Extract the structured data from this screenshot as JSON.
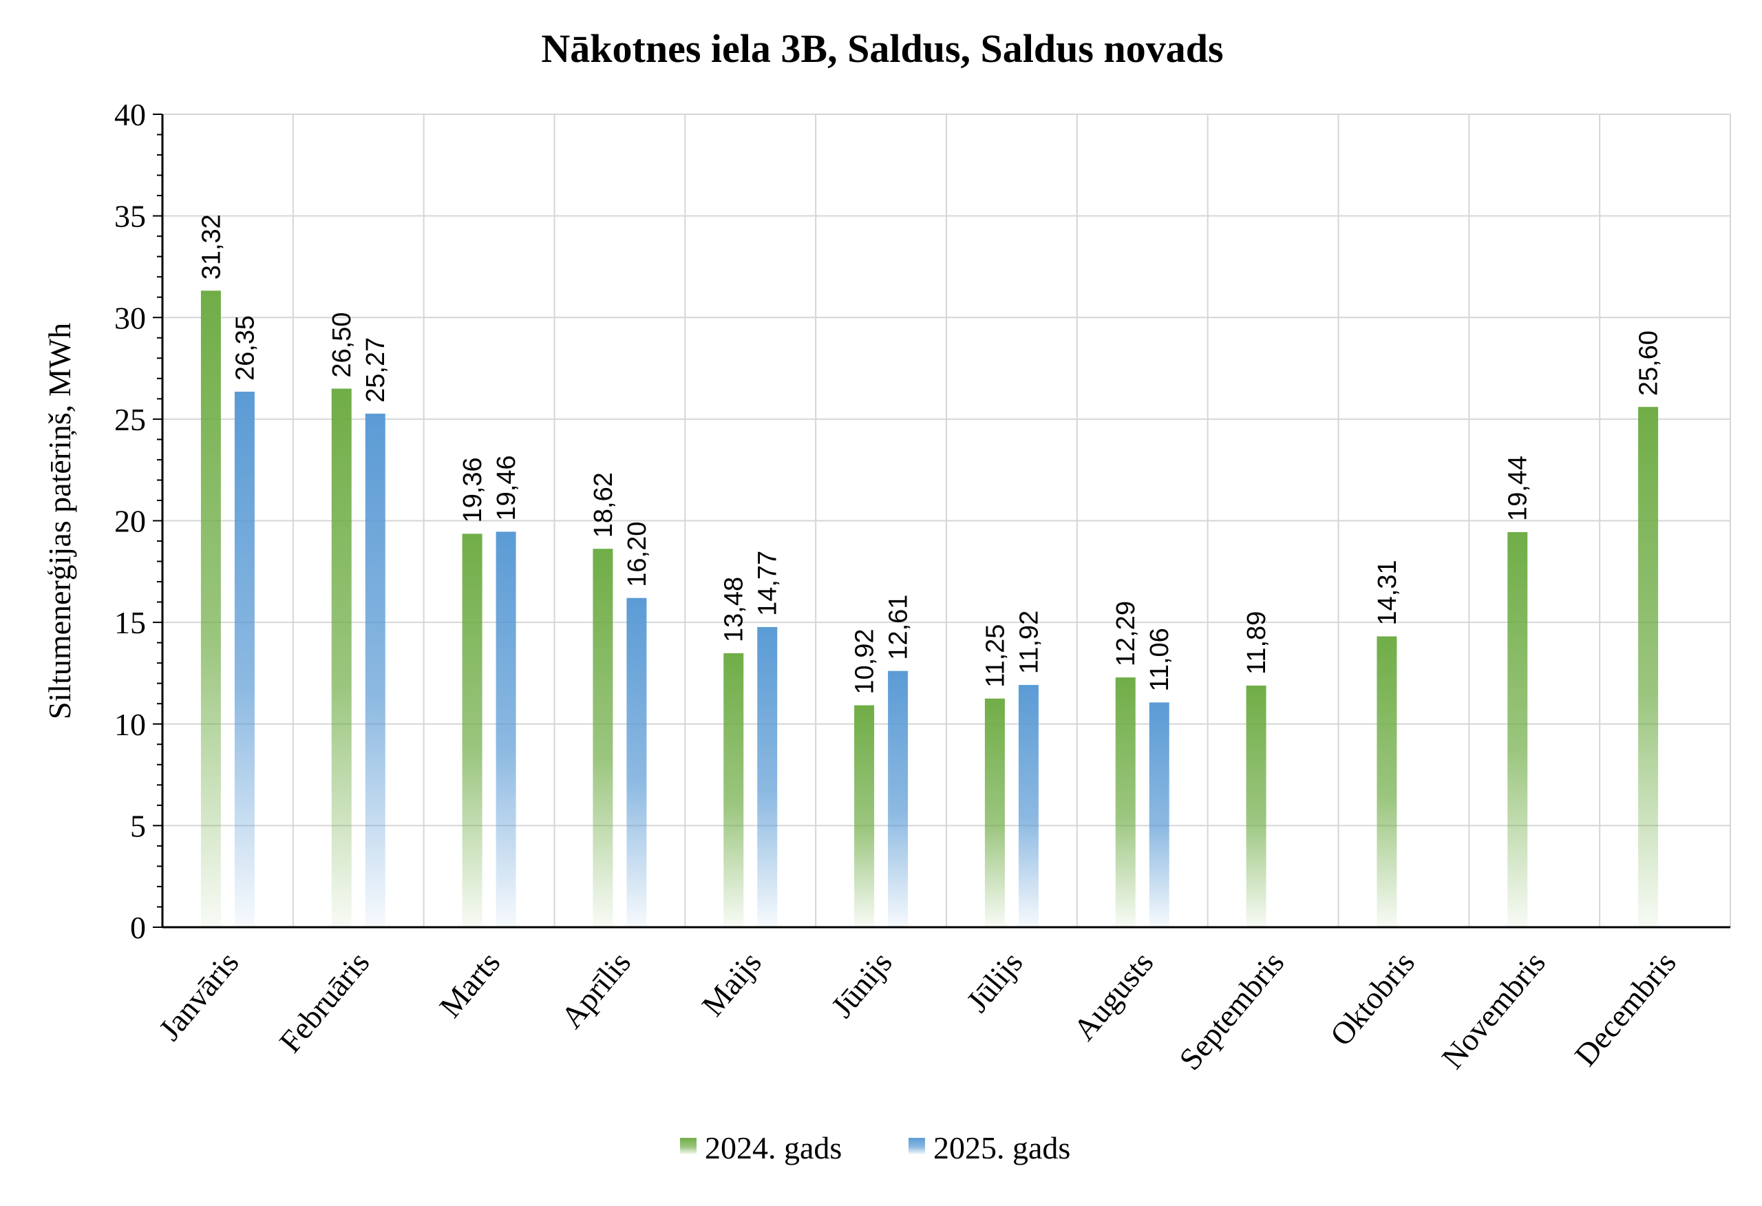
{
  "chart_data": {
    "type": "bar",
    "title": "Nākotnes iela 3B, Saldus, Saldus novads",
    "xlabel": "",
    "ylabel": "Siltumenerģijas patēriņš, MWh",
    "ylim": [
      0,
      40
    ],
    "yticks": [
      0,
      5,
      10,
      15,
      20,
      25,
      30,
      35,
      40
    ],
    "grid": true,
    "legend_position": "bottom",
    "categories": [
      "Janvāris",
      "Februāris",
      "Marts",
      "Aprīlis",
      "Maijs",
      "Jūnijs",
      "Jūlijs",
      "Augusts",
      "Septembris",
      "Oktobris",
      "Novembris",
      "Decembris"
    ],
    "series": [
      {
        "name": "2024. gads",
        "color": "#70AD47",
        "values": [
          31.32,
          26.5,
          19.36,
          18.62,
          13.48,
          10.92,
          11.25,
          12.29,
          11.89,
          14.31,
          19.44,
          25.6
        ],
        "labels": [
          "31,32",
          "26,50",
          "19,36",
          "18,62",
          "13,48",
          "10,92",
          "11,25",
          "12,29",
          "11,89",
          "14,31",
          "19,44",
          "25,60"
        ]
      },
      {
        "name": "2025. gads",
        "color": "#5B9BD5",
        "values": [
          26.35,
          25.27,
          19.46,
          16.2,
          14.77,
          12.61,
          11.92,
          11.06,
          null,
          null,
          null,
          null
        ],
        "labels": [
          "26,35",
          "25,27",
          "19,46",
          "16,20",
          "14,77",
          "12,61",
          "11,92",
          "11,06",
          null,
          null,
          null,
          null
        ]
      }
    ]
  }
}
